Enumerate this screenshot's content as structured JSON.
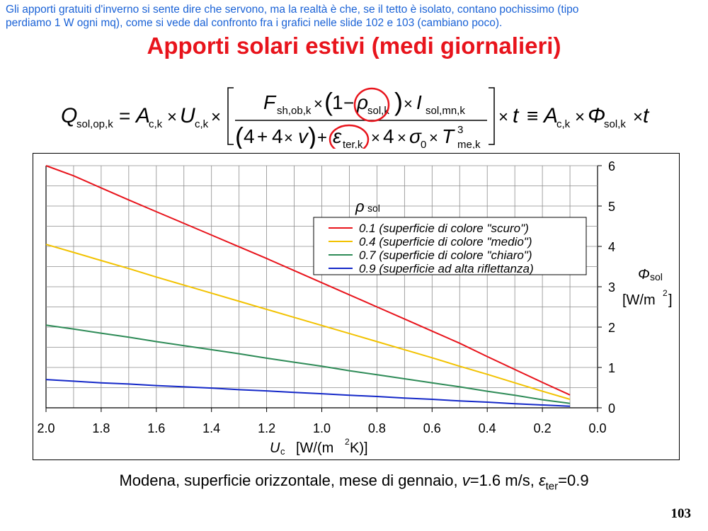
{
  "slide": {
    "note": "Gli apporti gratuiti d'inverno si sente dire che servono, ma la realtà è che, se il tetto è isolato, contano pochissimo (tipo perdiamo 1 W ogni mq), come si vede dal confronto fra i grafici nelle slide 102 e 103 (cambiano poco).",
    "note_line1": "Gli apporti gratuiti d'inverno si sente dire che servono, ma la realtà è che, se il tetto è isolato, contano pochissimo (tipo",
    "note_line2": "perdiamo 1 W ogni mq), come si vede dal confronto fra i grafici nelle slide 102 e 103 (cambiano poco).",
    "title": "Apporti solari estivi (medi giornalieri)",
    "caption": {
      "text": "Modena, superficie orizzontale, mese di gennaio, ",
      "v_symbol": "v",
      "v_value": "=1.6 m/s, ",
      "eps_symbol": "ε",
      "eps_sub": "ter",
      "eps_value": "=0.9"
    },
    "page_number": "103"
  },
  "formula": {
    "lhs": "Q",
    "lhs_sub": "sol,op,k",
    "eq": "=",
    "A": "A",
    "A_sub": "c,k",
    "U": "U",
    "U_sub": "c,k",
    "times": "×",
    "F": "F",
    "F_sub": "sh,ob,k",
    "one": "1",
    "minus": "−",
    "rho": "ρ",
    "rho_sub": "sol,k",
    "I": "I",
    "I_sub": "sol,mn,k",
    "four": "4",
    "plus": "+",
    "v": "v",
    "eps": "ε",
    "eps_sub": "ter,k",
    "sigma": "σ",
    "sigma_sub": "0",
    "T": "T",
    "T_sub": "me,k",
    "T_sup": "3",
    "t": "t",
    "equiv": "≡",
    "phi": "Φ",
    "phi_sub": "sol,k",
    "highlight_color": "#e8141c"
  },
  "chart_data": {
    "type": "line",
    "title": "",
    "xlabel": "U",
    "xlabel_sub": "c",
    "xlabel_unit": "[W/(m",
    "xlabel_unit_sup": "2",
    "xlabel_unit_end": "K)]",
    "ylabel_symbol": "Φ",
    "ylabel_sub": "sol",
    "ylabel_unit": "[W/m",
    "ylabel_unit_sup": "2",
    "ylabel_unit_end": "]",
    "x_reversed": true,
    "xlim": [
      0.0,
      2.0
    ],
    "ylim": [
      0,
      6
    ],
    "grid": true,
    "x_ticks": [
      "2.0",
      "1.8",
      "1.6",
      "1.4",
      "1.2",
      "1.0",
      "0.8",
      "0.6",
      "0.4",
      "0.2",
      "0.0"
    ],
    "y_ticks": [
      "0",
      "1",
      "2",
      "3",
      "4",
      "5",
      "6"
    ],
    "y_axis_side": "right",
    "legend_title": "ρ",
    "legend_title_sub": "sol",
    "legend_position": "upper-right",
    "x": [
      2.0,
      1.9,
      1.8,
      1.7,
      1.6,
      1.5,
      1.4,
      1.3,
      1.2,
      1.1,
      1.0,
      0.9,
      0.8,
      0.7,
      0.6,
      0.5,
      0.4,
      0.3,
      0.2,
      0.1
    ],
    "series": [
      {
        "name": "0.1 (superficie di colore \"scuro\")",
        "color": "#e8141c",
        "values": [
          6.05,
          5.75,
          5.45,
          5.15,
          4.86,
          4.57,
          4.28,
          3.99,
          3.7,
          3.4,
          3.1,
          2.8,
          2.5,
          2.2,
          1.9,
          1.6,
          1.27,
          0.95,
          0.63,
          0.32
        ]
      },
      {
        "name": "0.4 (superficie di colore \"medio\")",
        "color": "#f2c200",
        "values": [
          4.05,
          3.85,
          3.65,
          3.45,
          3.24,
          3.04,
          2.84,
          2.64,
          2.44,
          2.24,
          2.04,
          1.84,
          1.64,
          1.44,
          1.24,
          1.03,
          0.83,
          0.62,
          0.41,
          0.21
        ]
      },
      {
        "name": "0.7 (superficie di colore \"chiaro\")",
        "color": "#2e8b57",
        "values": [
          2.05,
          1.95,
          1.85,
          1.75,
          1.64,
          1.54,
          1.44,
          1.34,
          1.23,
          1.13,
          1.03,
          0.92,
          0.82,
          0.72,
          0.62,
          0.52,
          0.41,
          0.31,
          0.2,
          0.11
        ]
      },
      {
        "name": "0.9 (superficie ad alta riflettanza)",
        "color": "#1428c8",
        "values": [
          0.7,
          0.66,
          0.62,
          0.59,
          0.55,
          0.52,
          0.49,
          0.45,
          0.42,
          0.38,
          0.35,
          0.31,
          0.28,
          0.24,
          0.21,
          0.17,
          0.14,
          0.1,
          0.07,
          0.04
        ]
      }
    ]
  }
}
